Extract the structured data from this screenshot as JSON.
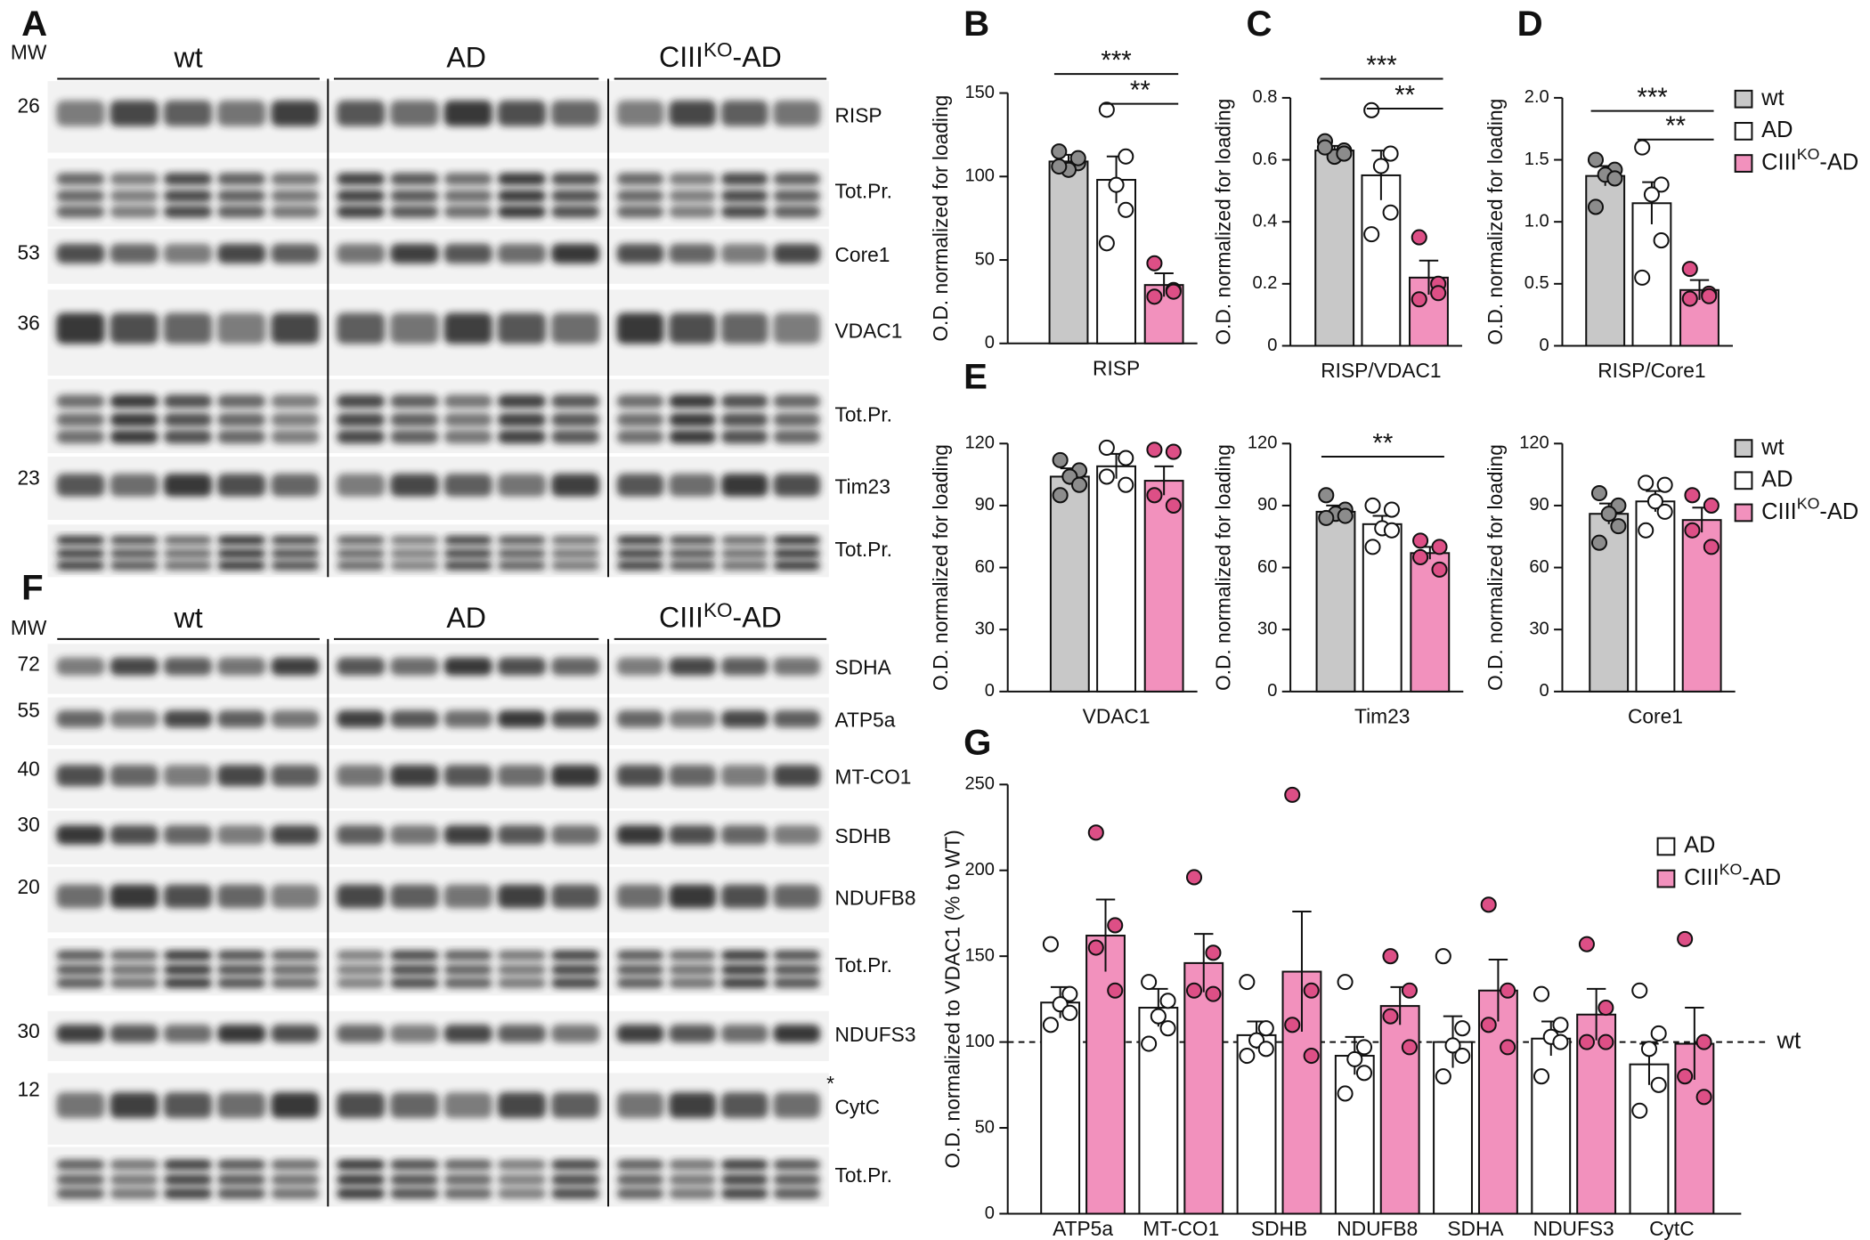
{
  "blots": [
    {
      "panel": "A",
      "mw_title": "MW",
      "groups": [
        "wt",
        "AD",
        "CIIIKO-AD"
      ],
      "rows": [
        {
          "mw": "26",
          "label": "RISP"
        },
        {
          "label": "Tot.Pr."
        },
        {
          "mw": "53",
          "label": "Core1"
        },
        {
          "mw": "36",
          "label": "VDAC1"
        },
        {
          "label": "Tot.Pr."
        },
        {
          "mw": "23",
          "label": "Tim23"
        },
        {
          "label": "Tot.Pr."
        }
      ]
    },
    {
      "panel": "F",
      "mw_title": "MW",
      "groups": [
        "wt",
        "AD",
        "CIIIKO-AD"
      ],
      "rows": [
        {
          "mw": "72",
          "label": "SDHA"
        },
        {
          "mw": "55",
          "label": "ATP5a"
        },
        {
          "mw": "40",
          "label": "MT-CO1"
        },
        {
          "mw": "30",
          "label": "SDHB"
        },
        {
          "mw": "20",
          "label": "NDUFB8"
        },
        {
          "label": "Tot.Pr."
        },
        {
          "mw": "30",
          "label": "NDUFS3"
        },
        {
          "mw": "12",
          "label": "CytC",
          "marker": "*"
        },
        {
          "label": "Tot.Pr."
        }
      ]
    }
  ],
  "chart_data": [
    {
      "type": "bar",
      "panel": "B",
      "ylabel": "O.D. normalized for loading",
      "xlabel": "RISP",
      "ylim": [
        0,
        150
      ],
      "yticks": [
        0,
        50,
        100,
        150
      ],
      "series": [
        {
          "color": "#c8c8c8",
          "point_color": "#8c8c8c",
          "values": [
            109
          ],
          "errors": [
            4
          ],
          "points": [
            [
              115,
              108,
              104,
              111,
              106
            ]
          ]
        },
        {
          "color": "#ffffff",
          "point_color": "#ffffff",
          "values": [
            98
          ],
          "errors": [
            14
          ],
          "points": [
            [
              140,
              112,
              95,
              80,
              60
            ]
          ]
        },
        {
          "color": "#f291bd",
          "point_color": "#dd4f86",
          "values": [
            35
          ],
          "errors": [
            7
          ],
          "points": [
            [
              48,
              32,
              28,
              31
            ]
          ]
        }
      ],
      "significance": [
        {
          "from": 0,
          "to": 2,
          "label": "***"
        },
        {
          "from": 1,
          "to": 2,
          "label": "**"
        }
      ]
    },
    {
      "type": "bar",
      "panel": "C",
      "ylabel": "O.D. normalized for loading",
      "xlabel": "RISP/VDAC1",
      "ylim": [
        0,
        0.8
      ],
      "yticks": [
        0,
        0.2,
        0.4,
        0.6,
        0.8
      ],
      "series": [
        {
          "color": "#c8c8c8",
          "point_color": "#8c8c8c",
          "values": [
            0.63
          ],
          "errors": [
            0.015
          ],
          "points": [
            [
              0.66,
              0.63,
              0.61,
              0.62,
              0.64
            ]
          ]
        },
        {
          "color": "#ffffff",
          "point_color": "#ffffff",
          "values": [
            0.55
          ],
          "errors": [
            0.08
          ],
          "points": [
            [
              0.76,
              0.62,
              0.58,
              0.43,
              0.36
            ]
          ]
        },
        {
          "color": "#f291bd",
          "point_color": "#dd4f86",
          "values": [
            0.22
          ],
          "errors": [
            0.055
          ],
          "points": [
            [
              0.35,
              0.2,
              0.15,
              0.17
            ]
          ]
        }
      ],
      "significance": [
        {
          "from": 0,
          "to": 2,
          "label": "***"
        },
        {
          "from": 1,
          "to": 2,
          "label": "**"
        }
      ]
    },
    {
      "type": "bar",
      "panel": "D",
      "ylabel": "O.D. normalized for loading",
      "xlabel": "RISP/Core1",
      "ylim": [
        0,
        2
      ],
      "yticks": [
        0,
        0.5,
        {
          "value": 1,
          "label": "1.0"
        },
        1.5,
        {
          "value": 2,
          "label": "2.0"
        }
      ],
      "series": [
        {
          "name": "wt",
          "color": "#c8c8c8",
          "point_color": "#8c8c8c",
          "values": [
            1.37
          ],
          "errors": [
            0.08
          ],
          "points": [
            [
              1.5,
              1.42,
              1.38,
              1.35,
              1.12
            ]
          ]
        },
        {
          "name": "AD",
          "color": "#ffffff",
          "point_color": "#ffffff",
          "values": [
            1.15
          ],
          "errors": [
            0.17
          ],
          "points": [
            [
              1.6,
              1.3,
              1.22,
              0.85,
              0.55
            ]
          ]
        },
        {
          "name": "CIIIKO-AD",
          "color": "#f291bd",
          "point_color": "#dd4f86",
          "values": [
            0.45
          ],
          "errors": [
            0.08
          ],
          "points": [
            [
              0.62,
              0.42,
              0.38,
              0.4
            ]
          ]
        }
      ],
      "significance": [
        {
          "from": 0,
          "to": 2,
          "label": "***"
        },
        {
          "from": 1,
          "to": 2,
          "label": "**"
        }
      ]
    },
    {
      "type": "bar",
      "panel": "E",
      "ylabel": "O.D. normalized for loading",
      "xlabel": "VDAC1",
      "ylim": [
        0,
        120
      ],
      "yticks": [
        0,
        30,
        60,
        90,
        120
      ],
      "series": [
        {
          "color": "#c8c8c8",
          "point_color": "#8c8c8c",
          "values": [
            104
          ],
          "errors": [
            4
          ],
          "points": [
            [
              112,
              107,
              104,
              100,
              95
            ]
          ]
        },
        {
          "color": "#ffffff",
          "point_color": "#ffffff",
          "values": [
            109
          ],
          "errors": [
            6
          ],
          "points": [
            [
              118,
              113,
              104,
              100
            ]
          ]
        },
        {
          "color": "#f291bd",
          "point_color": "#dd4f86",
          "values": [
            102
          ],
          "errors": [
            7
          ],
          "points": [
            [
              117,
              116,
              95,
              90
            ]
          ]
        }
      ]
    },
    {
      "type": "bar",
      "ylabel": "O.D. normalized for loading",
      "xlabel": "Tim23",
      "ylim": [
        0,
        120
      ],
      "yticks": [
        0,
        30,
        60,
        90,
        120
      ],
      "series": [
        {
          "color": "#c8c8c8",
          "point_color": "#8c8c8c",
          "values": [
            87
          ],
          "errors": [
            3
          ],
          "points": [
            [
              95,
              88,
              86,
              85,
              84
            ]
          ]
        },
        {
          "color": "#ffffff",
          "point_color": "#ffffff",
          "values": [
            81
          ],
          "errors": [
            4
          ],
          "points": [
            [
              90,
              88,
              79,
              78,
              70
            ]
          ]
        },
        {
          "color": "#f291bd",
          "point_color": "#dd4f86",
          "values": [
            67
          ],
          "errors": [
            3
          ],
          "points": [
            [
              73,
              70,
              65,
              59
            ]
          ]
        }
      ],
      "significance": [
        {
          "from": 0,
          "to": 2,
          "label": "**"
        }
      ]
    },
    {
      "type": "bar",
      "ylabel": "O.D. normalized for loading",
      "xlabel": "Core1",
      "ylim": [
        0,
        120
      ],
      "yticks": [
        0,
        30,
        60,
        90,
        120
      ],
      "series": [
        {
          "name": "wt",
          "color": "#c8c8c8",
          "point_color": "#8c8c8c",
          "values": [
            86
          ],
          "errors": [
            5
          ],
          "points": [
            [
              96,
              90,
              86,
              80,
              72
            ]
          ]
        },
        {
          "name": "AD",
          "color": "#ffffff",
          "point_color": "#ffffff",
          "values": [
            92
          ],
          "errors": [
            5
          ],
          "points": [
            [
              101,
              100,
              92,
              87,
              78
            ]
          ]
        },
        {
          "name": "CIIIKO-AD",
          "color": "#f291bd",
          "point_color": "#dd4f86",
          "values": [
            83
          ],
          "errors": [
            6
          ],
          "points": [
            [
              95,
              90,
              78,
              70
            ]
          ]
        }
      ]
    },
    {
      "type": "grouped_bar",
      "panel": "G",
      "ylabel": "O.D. normalized to VDAC1 (% to WT)",
      "ylim": [
        0,
        250
      ],
      "yticks": [
        0,
        50,
        100,
        150,
        200,
        250
      ],
      "categories": [
        "ATP5a",
        "MT-CO1",
        "SDHB",
        "NDUFB8",
        "SDHA",
        "NDUFS3",
        "CytC"
      ],
      "reference": {
        "value": 100,
        "label": "wt"
      },
      "series": [
        {
          "name": "AD",
          "color": "#ffffff",
          "point_color": "#ffffff",
          "values": [
            123,
            120,
            104,
            92,
            100,
            102,
            87
          ],
          "errors": [
            9,
            11,
            8,
            11,
            15,
            10,
            12
          ],
          "points": [
            [
              157,
              128,
              122,
              117,
              110
            ],
            [
              135,
              124,
              115,
              108,
              99
            ],
            [
              135,
              108,
              101,
              96,
              92
            ],
            [
              135,
              97,
              90,
              82,
              70
            ],
            [
              150,
              108,
              98,
              92,
              80
            ],
            [
              128,
              110,
              103,
              100,
              80
            ],
            [
              130,
              105,
              96,
              75,
              60
            ]
          ]
        },
        {
          "name": "CIIIKO-AD",
          "color": "#f291bd",
          "point_color": "#dd4f86",
          "values": [
            162,
            146,
            141,
            121,
            130,
            116,
            99
          ],
          "errors": [
            21,
            17,
            35,
            11,
            18,
            15,
            21
          ],
          "points": [
            [
              222,
              168,
              155,
              130
            ],
            [
              196,
              152,
              130,
              128
            ],
            [
              244,
              130,
              110,
              92
            ],
            [
              150,
              130,
              115,
              97
            ],
            [
              180,
              130,
              110,
              97
            ],
            [
              157,
              120,
              100,
              100
            ],
            [
              160,
              100,
              80,
              68
            ]
          ]
        }
      ]
    }
  ]
}
